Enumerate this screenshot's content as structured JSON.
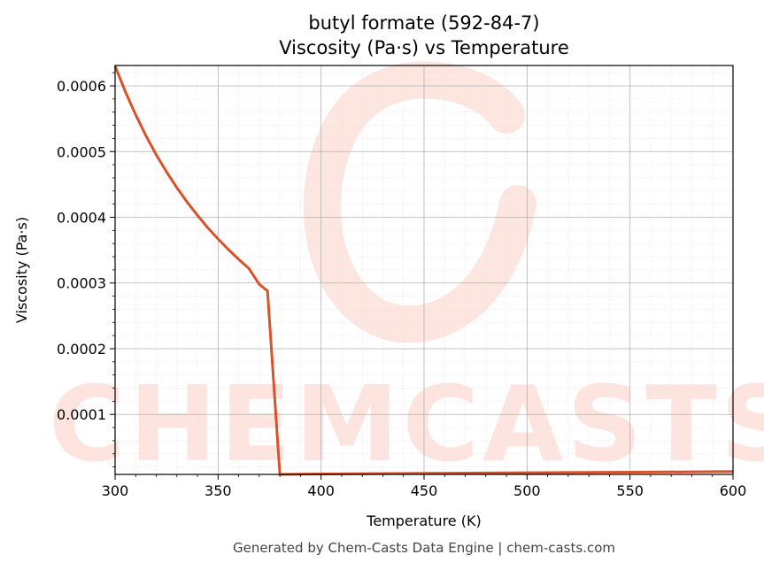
{
  "chart_data": {
    "type": "line",
    "title": "butyl formate (592-84-7)",
    "subtitle": "Viscosity (Pa·s) vs Temperature",
    "xlabel": "Temperature (K)",
    "ylabel": "Viscosity (Pa·s)",
    "xlim": [
      300,
      600
    ],
    "ylim": [
      8.7e-06,
      0.000631
    ],
    "x_ticks": [
      300,
      350,
      400,
      450,
      500,
      550,
      600
    ],
    "x_tick_labels": [
      "300",
      "350",
      "400",
      "450",
      "500",
      "550",
      "600"
    ],
    "y_ticks": [
      0.0001,
      0.0002,
      0.0003,
      0.0004,
      0.0005,
      0.0006
    ],
    "y_tick_labels": [
      "0.0001",
      "0.0002",
      "0.0003",
      "0.0004",
      "0.0005",
      "0.0006"
    ],
    "grid": true,
    "minor_grid": true,
    "legend": "none",
    "line_color": "#d9532a",
    "series": [
      {
        "x": [
          300,
          305,
          310,
          315,
          320,
          325,
          330,
          335,
          340,
          345,
          350,
          355,
          360,
          365,
          370,
          374,
          380,
          400,
          450,
          500,
          550,
          600
        ],
        "values": [
          0.00063,
          0.000591,
          0.000556,
          0.000524,
          0.000495,
          0.000469,
          0.000445,
          0.000423,
          0.000403,
          0.000384,
          0.000367,
          0.000351,
          0.000336,
          0.000322,
          0.000298,
          0.000288,
          8.7e-06,
          9.3e-06,
          1.03e-05,
          1.12e-05,
          1.21e-05,
          1.3e-05
        ]
      }
    ]
  },
  "watermark": {
    "text": "CHEMCASTS",
    "color": "#fde0da"
  },
  "footer": {
    "text": "Generated by Chem-Casts Data Engine | chem-casts.com"
  }
}
